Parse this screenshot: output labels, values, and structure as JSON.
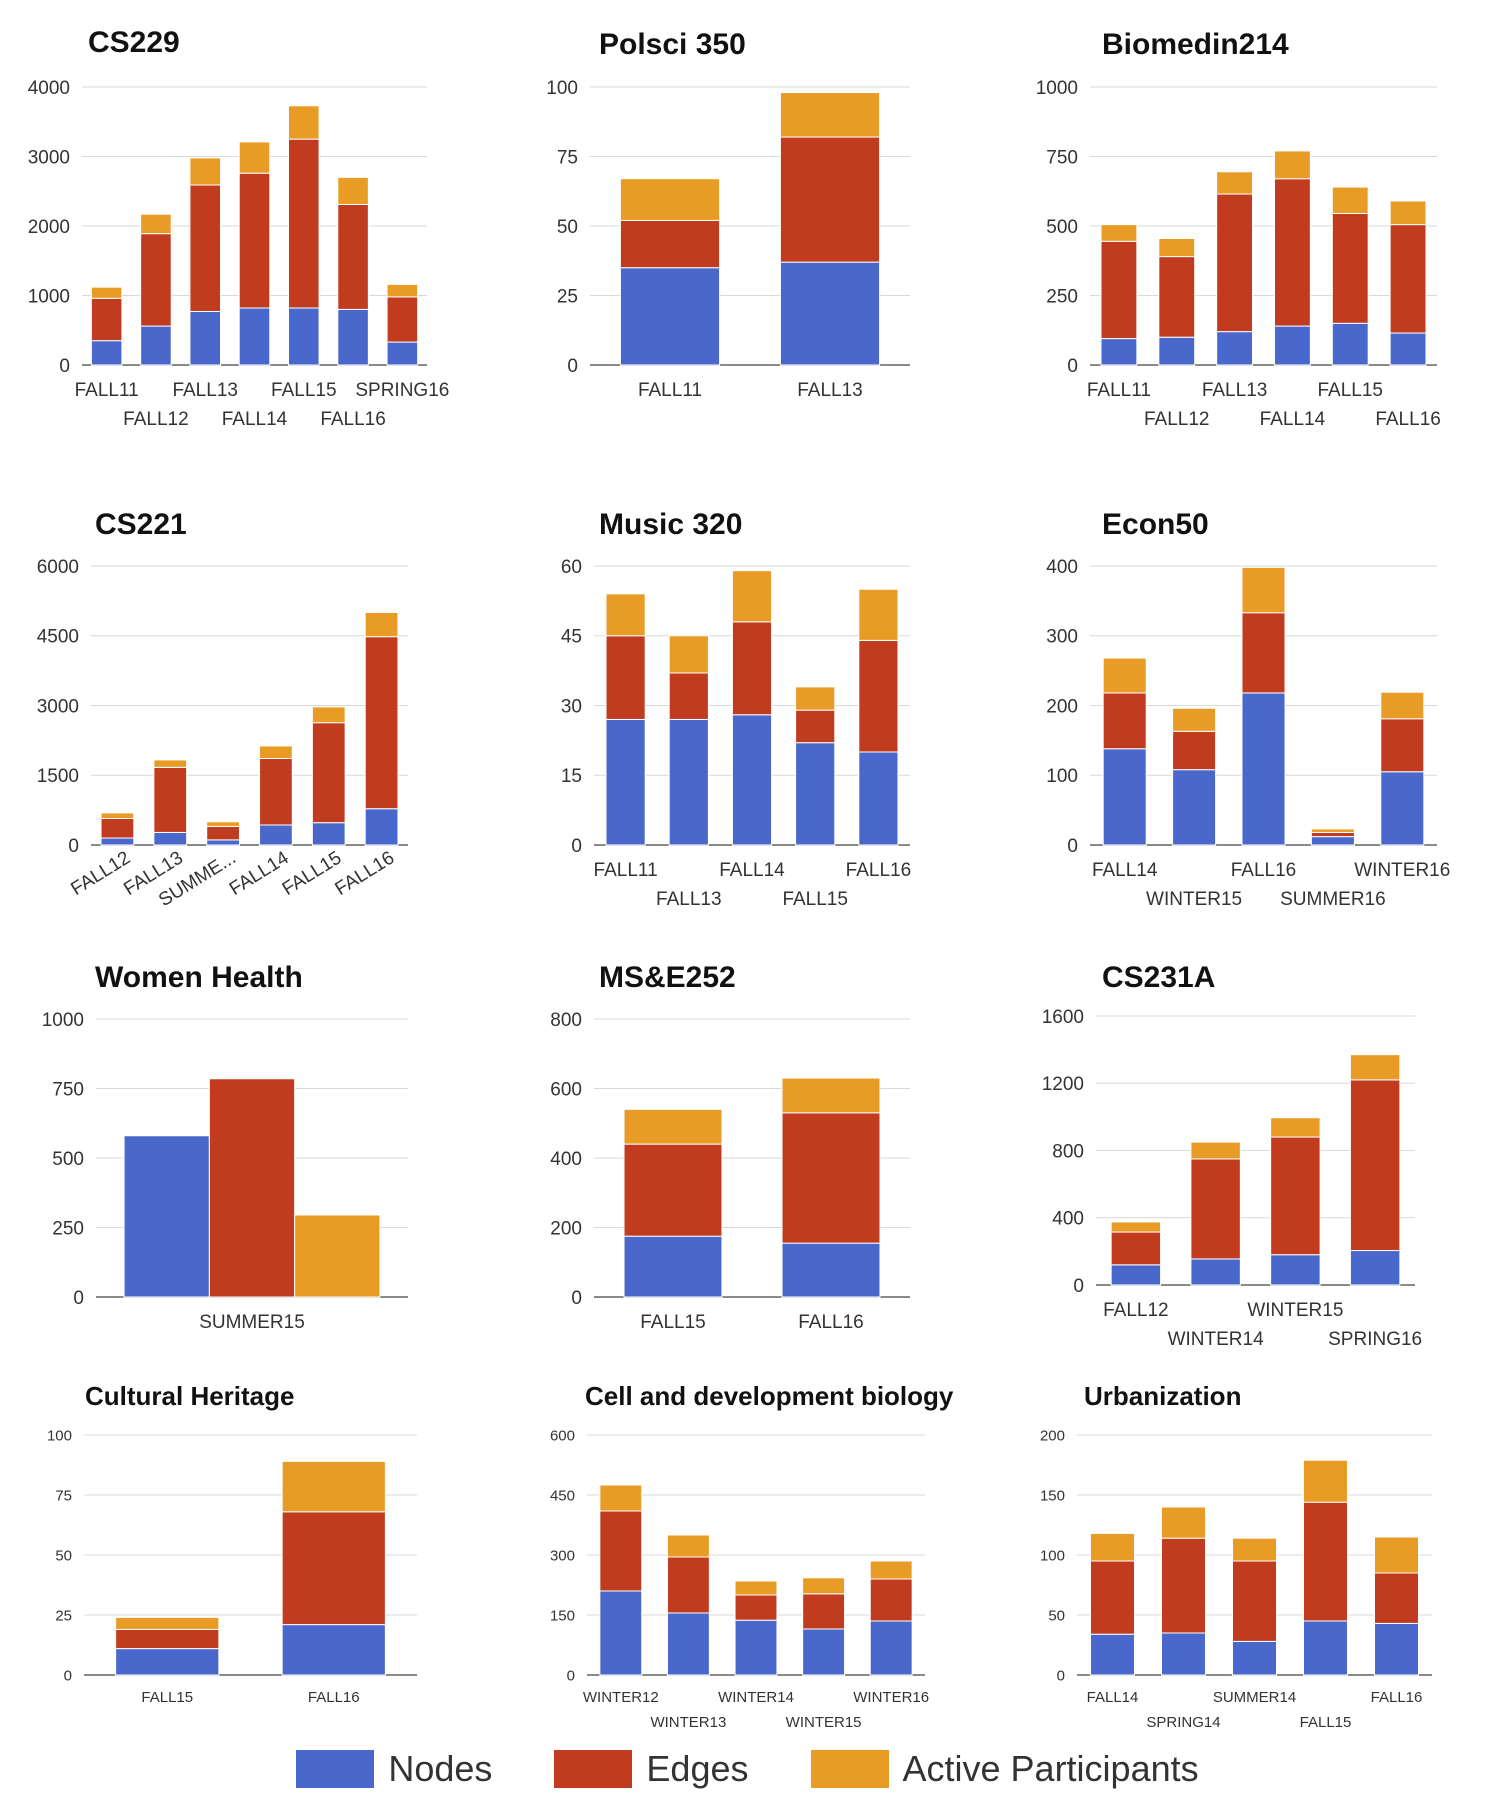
{
  "legend": {
    "nodes": "Nodes",
    "edges": "Edges",
    "active": "Active Participants",
    "colors": {
      "nodes": "#4a67cb",
      "edges": "#c13b1e",
      "active": "#e89b25"
    }
  },
  "chart_data": [
    {
      "type": "bar",
      "stacked": true,
      "title": "CS229",
      "categories": [
        "FALL11",
        "FALL12",
        "FALL13",
        "FALL14",
        "FALL15",
        "FALL16",
        "SPRING16"
      ],
      "yticks": [
        "0",
        "1000",
        "2000",
        "3000",
        "4000"
      ],
      "ylim": [
        0,
        4000
      ],
      "series": [
        {
          "name": "Nodes",
          "values": [
            350,
            560,
            770,
            820,
            820,
            800,
            330
          ]
        },
        {
          "name": "Edges",
          "values": [
            610,
            1330,
            1820,
            1940,
            2430,
            1510,
            650
          ]
        },
        {
          "name": "Active Participants",
          "values": [
            160,
            280,
            390,
            450,
            480,
            390,
            180
          ]
        }
      ]
    },
    {
      "type": "bar",
      "stacked": true,
      "title": "Polsci 350",
      "categories": [
        "FALL11",
        "FALL13"
      ],
      "yticks": [
        "0",
        "25",
        "50",
        "75",
        "100"
      ],
      "ylim": [
        0,
        100
      ],
      "series": [
        {
          "name": "Nodes",
          "values": [
            35,
            37
          ]
        },
        {
          "name": "Edges",
          "values": [
            17,
            45
          ]
        },
        {
          "name": "Active Participants",
          "values": [
            15,
            16
          ]
        }
      ]
    },
    {
      "type": "bar",
      "stacked": true,
      "title": "Biomedin214",
      "categories": [
        "FALL11",
        "FALL12",
        "FALL13",
        "FALL14",
        "FALL15",
        "FALL16"
      ],
      "yticks": [
        "0",
        "250",
        "500",
        "750",
        "1000"
      ],
      "ylim": [
        0,
        1000
      ],
      "series": [
        {
          "name": "Nodes",
          "values": [
            95,
            100,
            120,
            140,
            150,
            115
          ]
        },
        {
          "name": "Edges",
          "values": [
            350,
            290,
            495,
            530,
            395,
            390
          ]
        },
        {
          "name": "Active Participants",
          "values": [
            60,
            65,
            80,
            100,
            95,
            85
          ]
        }
      ]
    },
    {
      "type": "bar",
      "stacked": true,
      "title": "CS221",
      "categories": [
        "FALL12",
        "FALL13",
        "SUMME...",
        "FALL14",
        "FALL15",
        "FALL16"
      ],
      "yticks": [
        "0",
        "1500",
        "3000",
        "4500",
        "6000"
      ],
      "ylim": [
        0,
        6000
      ],
      "series": [
        {
          "name": "Nodes",
          "values": [
            150,
            270,
            110,
            430,
            480,
            780
          ]
        },
        {
          "name": "Edges",
          "values": [
            420,
            1400,
            290,
            1430,
            2150,
            3700
          ]
        },
        {
          "name": "Active Participants",
          "values": [
            120,
            160,
            100,
            270,
            340,
            520
          ]
        }
      ]
    },
    {
      "type": "bar",
      "stacked": true,
      "title": "Music 320",
      "categories": [
        "FALL11",
        "FALL13",
        "FALL14",
        "FALL15",
        "FALL16"
      ],
      "yticks": [
        "0",
        "15",
        "30",
        "45",
        "60"
      ],
      "ylim": [
        0,
        60
      ],
      "series": [
        {
          "name": "Nodes",
          "values": [
            27,
            27,
            28,
            22,
            20
          ]
        },
        {
          "name": "Edges",
          "values": [
            18,
            10,
            20,
            7,
            24
          ]
        },
        {
          "name": "Active Participants",
          "values": [
            9,
            8,
            11,
            5,
            11
          ]
        }
      ]
    },
    {
      "type": "bar",
      "stacked": true,
      "title": "Econ50",
      "categories": [
        "FALL14",
        "WINTER15",
        "FALL16",
        "SUMMER16",
        "WINTER16"
      ],
      "yticks": [
        "0",
        "100",
        "200",
        "300",
        "400"
      ],
      "ylim": [
        0,
        400
      ],
      "series": [
        {
          "name": "Nodes",
          "values": [
            138,
            108,
            218,
            12,
            105
          ]
        },
        {
          "name": "Edges",
          "values": [
            80,
            55,
            115,
            6,
            76
          ]
        },
        {
          "name": "Active Participants",
          "values": [
            50,
            33,
            65,
            5,
            38
          ]
        }
      ]
    },
    {
      "type": "bar",
      "stacked": false,
      "title": "Women Health",
      "categories": [
        "SUMMER15"
      ],
      "yticks": [
        "0",
        "250",
        "500",
        "750",
        "1000"
      ],
      "ylim": [
        0,
        1000
      ],
      "series": [
        {
          "name": "Nodes",
          "values": [
            580
          ]
        },
        {
          "name": "Edges",
          "values": [
            785
          ]
        },
        {
          "name": "Active Participants",
          "values": [
            295
          ]
        }
      ]
    },
    {
      "type": "bar",
      "stacked": true,
      "title": "MS&E252",
      "categories": [
        "FALL15",
        "FALL16"
      ],
      "yticks": [
        "0",
        "200",
        "400",
        "600",
        "800"
      ],
      "ylim": [
        0,
        800
      ],
      "series": [
        {
          "name": "Nodes",
          "values": [
            175,
            155
          ]
        },
        {
          "name": "Edges",
          "values": [
            265,
            375
          ]
        },
        {
          "name": "Active Participants",
          "values": [
            100,
            100
          ]
        }
      ]
    },
    {
      "type": "bar",
      "stacked": true,
      "title": "CS231A",
      "categories": [
        "FALL12",
        "WINTER14",
        "WINTER15",
        "SPRING16"
      ],
      "yticks": [
        "0",
        "400",
        "800",
        "1200",
        "1600"
      ],
      "ylim": [
        0,
        1600
      ],
      "series": [
        {
          "name": "Nodes",
          "values": [
            120,
            155,
            180,
            205
          ]
        },
        {
          "name": "Edges",
          "values": [
            195,
            595,
            700,
            1015
          ]
        },
        {
          "name": "Active Participants",
          "values": [
            60,
            100,
            115,
            150
          ]
        }
      ]
    },
    {
      "type": "bar",
      "stacked": true,
      "title": "Cultural Heritage",
      "categories": [
        "FALL15",
        "FALL16"
      ],
      "yticks": [
        "0",
        "25",
        "50",
        "75",
        "100"
      ],
      "ylim": [
        0,
        100
      ],
      "series": [
        {
          "name": "Nodes",
          "values": [
            11,
            21
          ]
        },
        {
          "name": "Edges",
          "values": [
            8,
            47
          ]
        },
        {
          "name": "Active Participants",
          "values": [
            5,
            21
          ]
        }
      ]
    },
    {
      "type": "bar",
      "stacked": true,
      "title": "Cell and development biology",
      "categories": [
        "WINTER12",
        "WINTER13",
        "WINTER14",
        "WINTER15",
        "WINTER16"
      ],
      "yticks": [
        "0",
        "150",
        "300",
        "450",
        "600"
      ],
      "ylim": [
        0,
        600
      ],
      "series": [
        {
          "name": "Nodes",
          "values": [
            210,
            155,
            137,
            115,
            135
          ]
        },
        {
          "name": "Edges",
          "values": [
            200,
            140,
            63,
            88,
            105
          ]
        },
        {
          "name": "Active Participants",
          "values": [
            65,
            55,
            35,
            40,
            45
          ]
        }
      ]
    },
    {
      "type": "bar",
      "stacked": true,
      "title": "Urbanization",
      "categories": [
        "FALL14",
        "SPRING14",
        "SUMMER14",
        "FALL15",
        "FALL16"
      ],
      "yticks": [
        "0",
        "50",
        "100",
        "150",
        "200"
      ],
      "ylim": [
        0,
        200
      ],
      "series": [
        {
          "name": "Nodes",
          "values": [
            34,
            35,
            28,
            45,
            43
          ]
        },
        {
          "name": "Edges",
          "values": [
            61,
            79,
            67,
            99,
            42
          ]
        },
        {
          "name": "Active Participants",
          "values": [
            23,
            26,
            19,
            35,
            30
          ]
        }
      ]
    }
  ]
}
